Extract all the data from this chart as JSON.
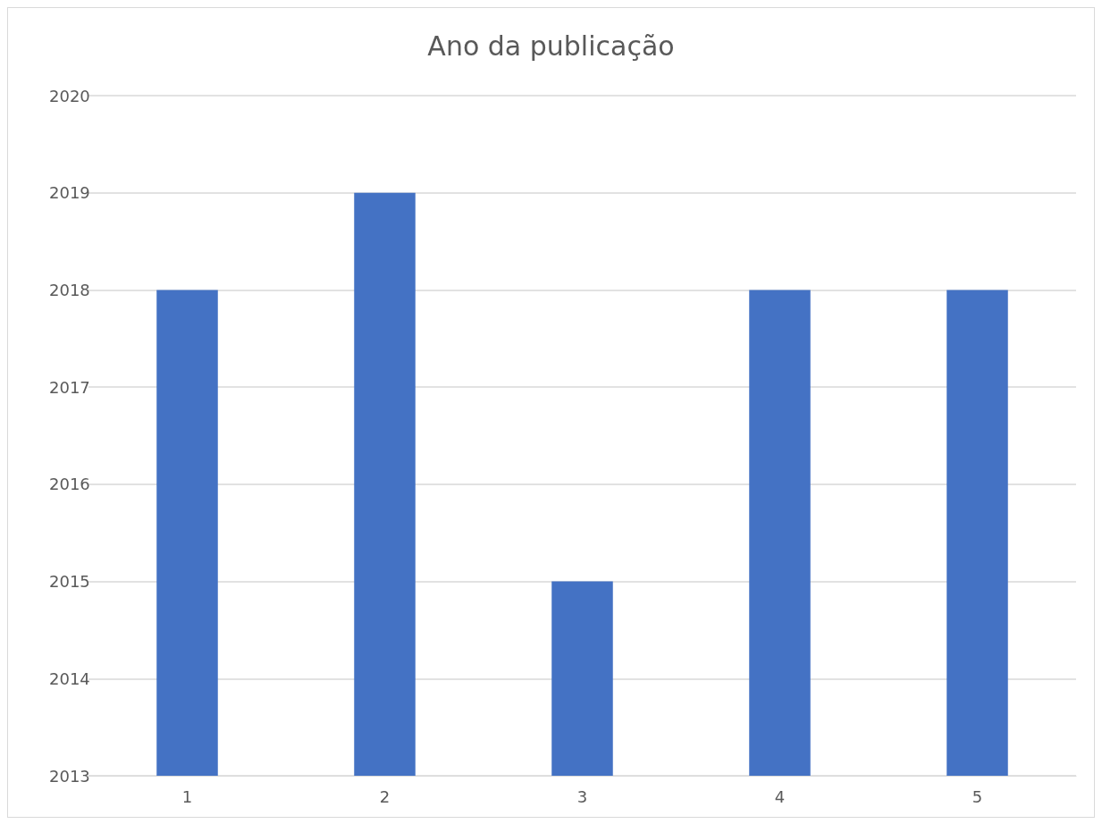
{
  "chart_data": {
    "type": "bar",
    "title": "Ano da publicação",
    "categories": [
      "1",
      "2",
      "3",
      "4",
      "5"
    ],
    "values": [
      2018,
      2019,
      2015,
      2018,
      2018
    ],
    "color": "#4472c4",
    "ylim": [
      2013,
      2020
    ],
    "yticks": [
      2013,
      2014,
      2015,
      2016,
      2017,
      2018,
      2019,
      2020
    ],
    "grid": "y"
  }
}
